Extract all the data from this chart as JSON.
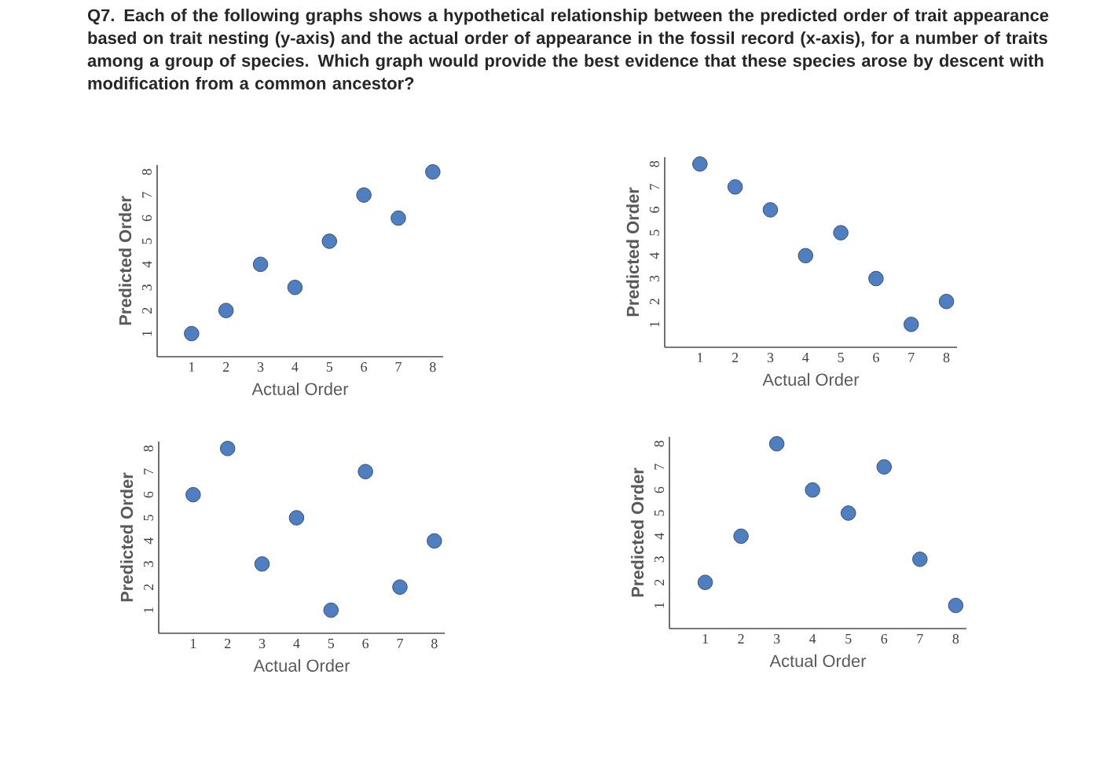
{
  "chart_data": [
    {
      "type": "scatter",
      "title": "Q7. Each of the following graphs shows a hypothetical relationship between the predicted order of trait appearance based on trait nesting (y-axis) and the actual order of appearance in the fossil record (x-axis), for a number of traits among a group of species. Which graph would provide the best evidence that these species arose by descent with modification from a common ancestor?",
      "xlabel": "Actual Order",
      "ylabel": "Predicted Order",
      "x": [
        1,
        2,
        3,
        4,
        5,
        6,
        7,
        8
      ],
      "xlim": [
        0,
        8.3
      ],
      "ylim": [
        0,
        8.3
      ],
      "xticks": [
        1,
        2,
        3,
        4,
        5,
        6,
        7,
        8
      ],
      "yticks": [
        1,
        2,
        3,
        4,
        5,
        6,
        7,
        8
      ],
      "marker": "circle",
      "series": [
        {
          "color": "#4f7fc0",
          "values": [
            1,
            2,
            4,
            3,
            5,
            7,
            6,
            8
          ]
        }
      ]
    },
    {
      "type": "scatter",
      "xlabel": "Actual Order",
      "ylabel": "Predicted Order",
      "x": [
        1,
        2,
        3,
        4,
        5,
        6,
        7,
        8
      ],
      "xlim": [
        0,
        8.3
      ],
      "ylim": [
        0,
        8.3
      ],
      "xticks": [
        1,
        2,
        3,
        4,
        5,
        6,
        7,
        8
      ],
      "yticks": [
        1,
        2,
        3,
        4,
        5,
        6,
        7,
        8
      ],
      "marker": "circle",
      "series": [
        {
          "color": "#4f7fc0",
          "values": [
            8,
            7,
            6,
            4,
            5,
            3,
            1,
            2
          ]
        }
      ]
    },
    {
      "type": "scatter",
      "xlabel": "Actual Order",
      "ylabel": "Predicted Order",
      "x": [
        1,
        2,
        3,
        4,
        5,
        6,
        7,
        8
      ],
      "xlim": [
        0,
        8.3
      ],
      "ylim": [
        0,
        8.3
      ],
      "xticks": [
        1,
        2,
        3,
        4,
        5,
        6,
        7,
        8
      ],
      "yticks": [
        1,
        2,
        3,
        4,
        5,
        6,
        7,
        8
      ],
      "marker": "circle",
      "series": [
        {
          "color": "#4f7fc0",
          "values": [
            6,
            8,
            3,
            5,
            1,
            7,
            2,
            4
          ]
        }
      ]
    },
    {
      "type": "scatter",
      "xlabel": "Actual Order",
      "ylabel": "Predicted Order",
      "x": [
        1,
        2,
        3,
        4,
        5,
        6,
        7,
        8
      ],
      "xlim": [
        0,
        8.3
      ],
      "ylim": [
        0,
        8.3
      ],
      "xticks": [
        1,
        2,
        3,
        4,
        5,
        6,
        7,
        8
      ],
      "yticks": [
        1,
        2,
        3,
        4,
        5,
        6,
        7,
        8
      ],
      "marker": "circle",
      "series": [
        {
          "color": "#4f7fc0",
          "values": [
            2,
            4,
            8,
            6,
            5,
            7,
            3,
            1
          ]
        }
      ]
    }
  ]
}
